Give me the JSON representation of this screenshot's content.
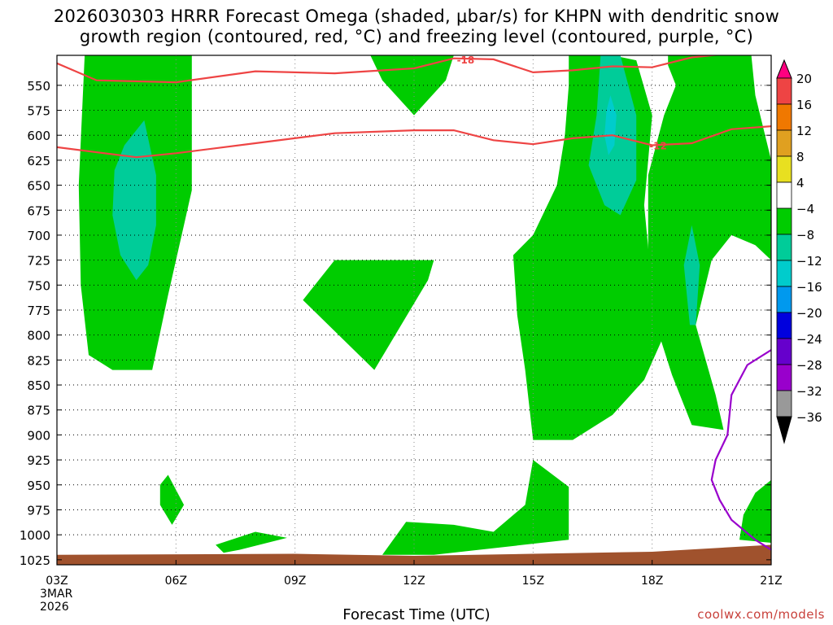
{
  "title_line1": "2026030303 HRRR Forecast Omega (shaded, μbar/s) for KHPN with dendritic snow",
  "title_line2": "growth region (contoured, red, °C) and freezing level (contoured, purple, °C)",
  "xlabel": "Forecast Time (UTC)",
  "date_line1": "3MAR",
  "date_line2": "2026",
  "credit": "coolwx.com/models",
  "colors": {
    "green": "#00cc00",
    "teal": "#00cc99",
    "cyan": "#00cccc",
    "red_contour": "#ee4444",
    "purple_contour": "#9900cc",
    "terrain": "#a0522d"
  },
  "chart_data": {
    "type": "contour",
    "x_axis": {
      "label": "Forecast Time (UTC)",
      "ticks": [
        "03Z",
        "06Z",
        "09Z",
        "12Z",
        "15Z",
        "18Z",
        "21Z"
      ],
      "tick_hours": [
        3,
        6,
        9,
        12,
        15,
        18,
        21
      ],
      "range_hours": [
        3,
        21
      ]
    },
    "y_axis": {
      "units": "mb",
      "ticks": [
        550,
        575,
        600,
        625,
        650,
        675,
        700,
        725,
        750,
        775,
        800,
        825,
        850,
        875,
        900,
        925,
        950,
        975,
        1000,
        1025
      ],
      "range": [
        520,
        1030
      ],
      "inverted": true
    },
    "grid": true,
    "colorbar": {
      "labels": [
        20,
        16,
        12,
        8,
        4,
        -4,
        -8,
        -12,
        -16,
        -20,
        -24,
        -28,
        -32,
        -36
      ],
      "colors": [
        "#ff0080",
        "#ee4444",
        "#f07800",
        "#e0a020",
        "#e8e020",
        "#ffffff",
        "#00cc00",
        "#00cc99",
        "#00cccc",
        "#0099ee",
        "#0000dd",
        "#6600cc",
        "#9900cc",
        "#999999",
        "#000000"
      ]
    },
    "contour_labels": [
      {
        "text": "-18",
        "level": -18
      },
      {
        "text": "-12",
        "level": -12
      }
    ],
    "omega_regions": [
      {
        "fill": "green",
        "points": [
          [
            4.0,
            520
          ],
          [
            6.4,
            520
          ],
          [
            6.4,
            655
          ],
          [
            6.2,
            690
          ],
          [
            5.8,
            760
          ],
          [
            5.4,
            835
          ],
          [
            4.4,
            835
          ],
          [
            3.8,
            820
          ],
          [
            3.6,
            750
          ],
          [
            3.55,
            650
          ],
          [
            3.7,
            520
          ]
        ]
      },
      {
        "fill": "teal",
        "points": [
          [
            5.2,
            585
          ],
          [
            5.5,
            640
          ],
          [
            5.5,
            690
          ],
          [
            5.3,
            730
          ],
          [
            5.0,
            745
          ],
          [
            4.6,
            720
          ],
          [
            4.4,
            680
          ],
          [
            4.45,
            635
          ],
          [
            4.7,
            610
          ]
        ]
      },
      {
        "fill": "green",
        "points": [
          [
            12.0,
            520
          ],
          [
            13.0,
            520
          ],
          [
            12.8,
            545
          ],
          [
            12.0,
            580
          ],
          [
            11.2,
            545
          ],
          [
            10.9,
            520
          ]
        ]
      },
      {
        "fill": "green",
        "points": [
          [
            11.0,
            725
          ],
          [
            12.5,
            725
          ],
          [
            12.35,
            745
          ],
          [
            11.0,
            835
          ],
          [
            9.2,
            765
          ],
          [
            10.0,
            725
          ]
        ]
      },
      {
        "fill": "green",
        "points": [
          [
            5.8,
            940
          ],
          [
            6.2,
            970
          ],
          [
            5.9,
            990
          ],
          [
            5.6,
            970
          ],
          [
            5.6,
            950
          ]
        ]
      },
      {
        "fill": "green",
        "points": [
          [
            7.0,
            1010
          ],
          [
            8.0,
            997
          ],
          [
            8.8,
            1003
          ],
          [
            7.6,
            1015
          ],
          [
            7.2,
            1018
          ]
        ]
      },
      {
        "fill": "green",
        "points": [
          [
            11.2,
            1020
          ],
          [
            11.8,
            987
          ],
          [
            13.0,
            990
          ],
          [
            14.0,
            997
          ],
          [
            14.8,
            970
          ],
          [
            15.0,
            925
          ],
          [
            15.9,
            952
          ],
          [
            15.9,
            1005
          ],
          [
            12.5,
            1020
          ]
        ]
      },
      {
        "fill": "green",
        "points": [
          [
            15.9,
            520
          ],
          [
            17.0,
            520
          ],
          [
            17.6,
            525
          ],
          [
            18.0,
            580
          ],
          [
            17.8,
            670
          ],
          [
            18.0,
            755
          ],
          [
            18.3,
            800
          ],
          [
            17.8,
            845
          ],
          [
            17.0,
            880
          ],
          [
            16.0,
            905
          ],
          [
            15.0,
            905
          ],
          [
            14.8,
            835
          ],
          [
            14.6,
            780
          ],
          [
            14.5,
            720
          ],
          [
            15.0,
            700
          ],
          [
            15.6,
            650
          ],
          [
            15.8,
            600
          ],
          [
            15.9,
            550
          ]
        ]
      },
      {
        "fill": "teal",
        "points": [
          [
            16.7,
            520
          ],
          [
            17.2,
            520
          ],
          [
            17.6,
            580
          ],
          [
            17.6,
            645
          ],
          [
            17.2,
            680
          ],
          [
            16.8,
            670
          ],
          [
            16.4,
            630
          ],
          [
            16.6,
            580
          ]
        ]
      },
      {
        "fill": "cyan",
        "points": [
          [
            16.95,
            560
          ],
          [
            17.1,
            580
          ],
          [
            17.05,
            610
          ],
          [
            16.9,
            620
          ],
          [
            16.8,
            600
          ],
          [
            16.85,
            575
          ]
        ]
      },
      {
        "fill": "green",
        "points": [
          [
            18.4,
            520
          ],
          [
            20.5,
            520
          ],
          [
            20.6,
            560
          ],
          [
            21.0,
            625
          ],
          [
            21.0,
            725
          ],
          [
            20.6,
            710
          ],
          [
            20.0,
            700
          ],
          [
            19.5,
            725
          ],
          [
            19.1,
            790
          ],
          [
            19.6,
            860
          ],
          [
            19.8,
            895
          ],
          [
            19.0,
            890
          ],
          [
            18.5,
            840
          ],
          [
            18.1,
            790
          ],
          [
            17.9,
            725
          ],
          [
            17.9,
            640
          ],
          [
            18.3,
            580
          ],
          [
            18.6,
            550
          ],
          [
            18.4,
            530
          ]
        ]
      },
      {
        "fill": "teal",
        "points": [
          [
            19.0,
            690
          ],
          [
            19.2,
            730
          ],
          [
            19.1,
            790
          ],
          [
            18.95,
            790
          ],
          [
            18.8,
            730
          ]
        ]
      },
      {
        "fill": "green",
        "points": [
          [
            21.0,
            945
          ],
          [
            21.0,
            1008
          ],
          [
            20.2,
            1005
          ],
          [
            20.3,
            980
          ],
          [
            20.6,
            958
          ]
        ]
      }
    ],
    "red_contours": [
      {
        "level": -18,
        "points": [
          [
            3,
            528
          ],
          [
            4,
            545
          ],
          [
            6,
            547
          ],
          [
            8,
            536
          ],
          [
            10,
            538
          ],
          [
            12,
            533
          ],
          [
            13,
            523
          ],
          [
            14,
            524
          ],
          [
            15,
            537
          ],
          [
            16,
            535
          ],
          [
            17,
            531
          ],
          [
            18,
            532
          ],
          [
            19,
            522
          ],
          [
            20,
            518
          ],
          [
            21,
            517
          ]
        ]
      },
      {
        "level": -12,
        "points": [
          [
            3,
            612
          ],
          [
            5,
            622
          ],
          [
            6,
            618
          ],
          [
            8,
            608
          ],
          [
            10,
            598
          ],
          [
            12,
            595
          ],
          [
            13,
            595
          ],
          [
            14,
            605
          ],
          [
            15,
            609
          ],
          [
            16,
            603
          ],
          [
            17,
            600
          ],
          [
            18,
            610
          ],
          [
            19,
            608
          ],
          [
            20,
            594
          ],
          [
            21,
            591
          ]
        ]
      }
    ],
    "freezing_contour": {
      "level": 0,
      "points": [
        [
          21.0,
          815
        ],
        [
          20.4,
          830
        ],
        [
          20.0,
          860
        ],
        [
          19.9,
          900
        ],
        [
          19.6,
          925
        ],
        [
          19.5,
          945
        ],
        [
          19.7,
          965
        ],
        [
          20.0,
          985
        ],
        [
          20.6,
          1005
        ],
        [
          21.0,
          1015
        ]
      ]
    },
    "terrain_surface_mb": [
      [
        3,
        1020
      ],
      [
        9,
        1019
      ],
      [
        12,
        1021
      ],
      [
        15,
        1019
      ],
      [
        18,
        1017
      ],
      [
        21,
        1010
      ]
    ]
  }
}
